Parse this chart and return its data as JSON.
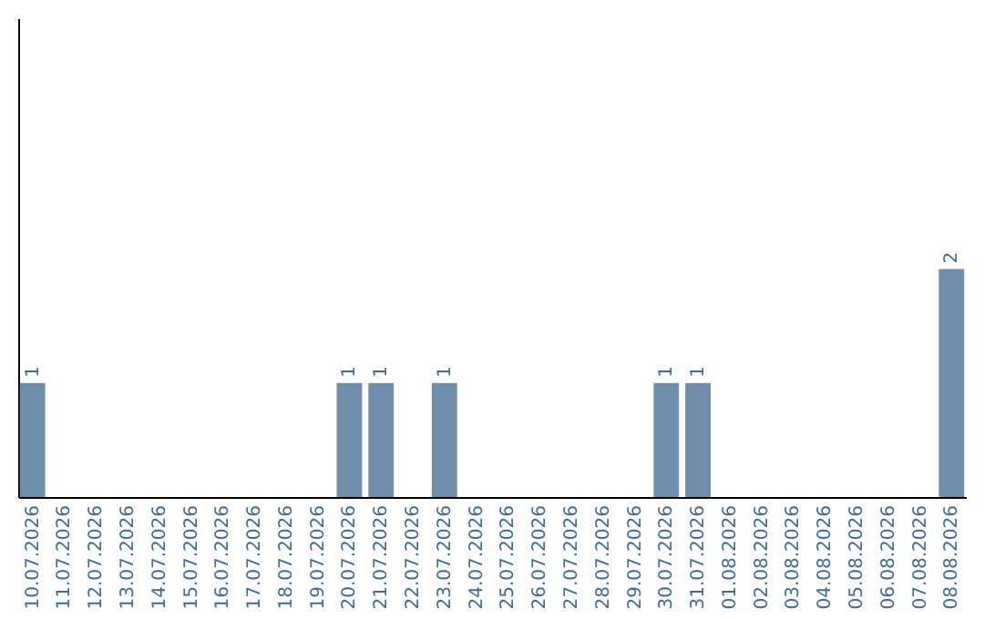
{
  "chart_data": {
    "type": "bar",
    "categories": [
      "10.07.2026",
      "11.07.2026",
      "12.07.2026",
      "13.07.2026",
      "14.07.2026",
      "15.07.2026",
      "16.07.2026",
      "17.07.2026",
      "18.07.2026",
      "19.07.2026",
      "20.07.2026",
      "21.07.2026",
      "22.07.2026",
      "23.07.2026",
      "24.07.2026",
      "25.07.2026",
      "26.07.2026",
      "27.07.2026",
      "28.07.2026",
      "29.07.2026",
      "30.07.2026",
      "31.07.2026",
      "01.08.2026",
      "02.08.2026",
      "03.08.2026",
      "04.08.2026",
      "05.08.2026",
      "06.08.2026",
      "07.08.2026",
      "08.08.2026"
    ],
    "values": [
      1,
      0,
      0,
      0,
      0,
      0,
      0,
      0,
      0,
      0,
      1,
      1,
      0,
      1,
      0,
      0,
      0,
      0,
      0,
      0,
      1,
      1,
      0,
      0,
      0,
      0,
      0,
      0,
      0,
      2
    ],
    "value_labels": [
      "1",
      null,
      null,
      null,
      null,
      null,
      null,
      null,
      null,
      null,
      "1",
      "1",
      null,
      "1",
      null,
      null,
      null,
      null,
      null,
      null,
      "1",
      "1",
      null,
      null,
      null,
      null,
      null,
      null,
      null,
      "2"
    ],
    "color": "#6e8eac",
    "ylim": [
      0,
      4.2
    ],
    "tick_labels": "x",
    "grid": false
  }
}
